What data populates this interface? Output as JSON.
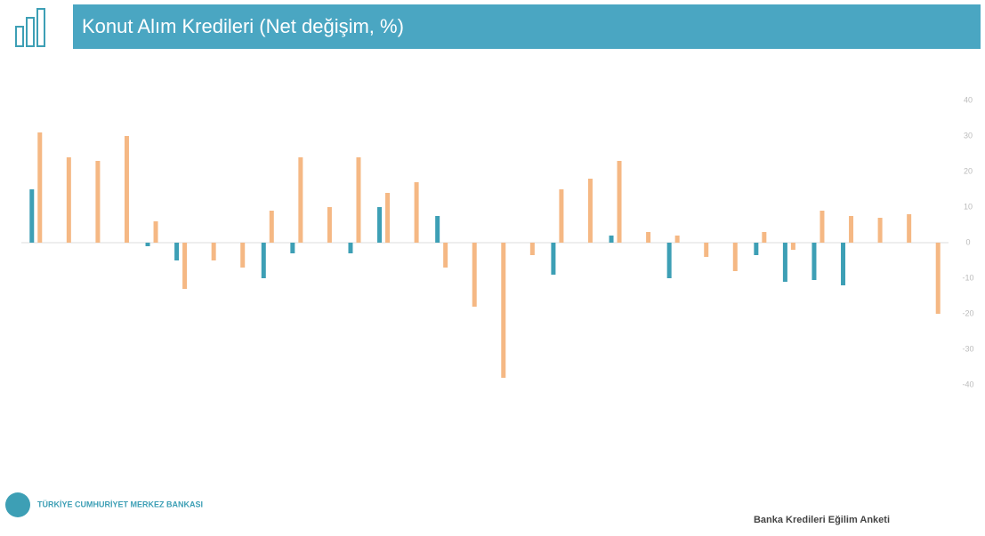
{
  "chart_data": {
    "type": "bar",
    "title": "Konut Alım Kredileri (Net değişim, %)",
    "categories": [
      null,
      null,
      null,
      null,
      null,
      null,
      null,
      null,
      null,
      null,
      null,
      null,
      null,
      null,
      null,
      null,
      null,
      null,
      null,
      null,
      null,
      null,
      null,
      null,
      null,
      null,
      null,
      null,
      null,
      null,
      null,
      null
    ],
    "series": [
      {
        "color": "#3d9fb5",
        "values": [
          15,
          0,
          0,
          0,
          -1,
          -5,
          0,
          0,
          -10,
          -3,
          0,
          -3,
          10,
          0,
          7.5,
          0,
          0,
          0,
          -9,
          0,
          2,
          0,
          -10,
          0,
          0,
          -3.5,
          -11,
          -10.5,
          -12,
          0,
          0,
          0
        ]
      },
      {
        "color": "#f5b884",
        "values": [
          31,
          24,
          23,
          30,
          6,
          -13,
          -5,
          -7,
          9,
          24,
          10,
          24,
          14,
          17,
          -7,
          -18,
          -38,
          -3.5,
          15,
          18,
          23,
          3,
          2,
          -4,
          -8,
          3,
          -2,
          9,
          7.5,
          7,
          8,
          -20
        ]
      }
    ],
    "ylim": [
      -40,
      40
    ],
    "yticks": [
      -40,
      -30,
      -20,
      -10,
      0,
      10,
      20,
      30,
      40
    ]
  },
  "footer": {
    "bank": "TÜRKİYE CUMHURİYET MERKEZ BANKASI",
    "survey": "Banka Kredileri Eğilim Anketi"
  }
}
